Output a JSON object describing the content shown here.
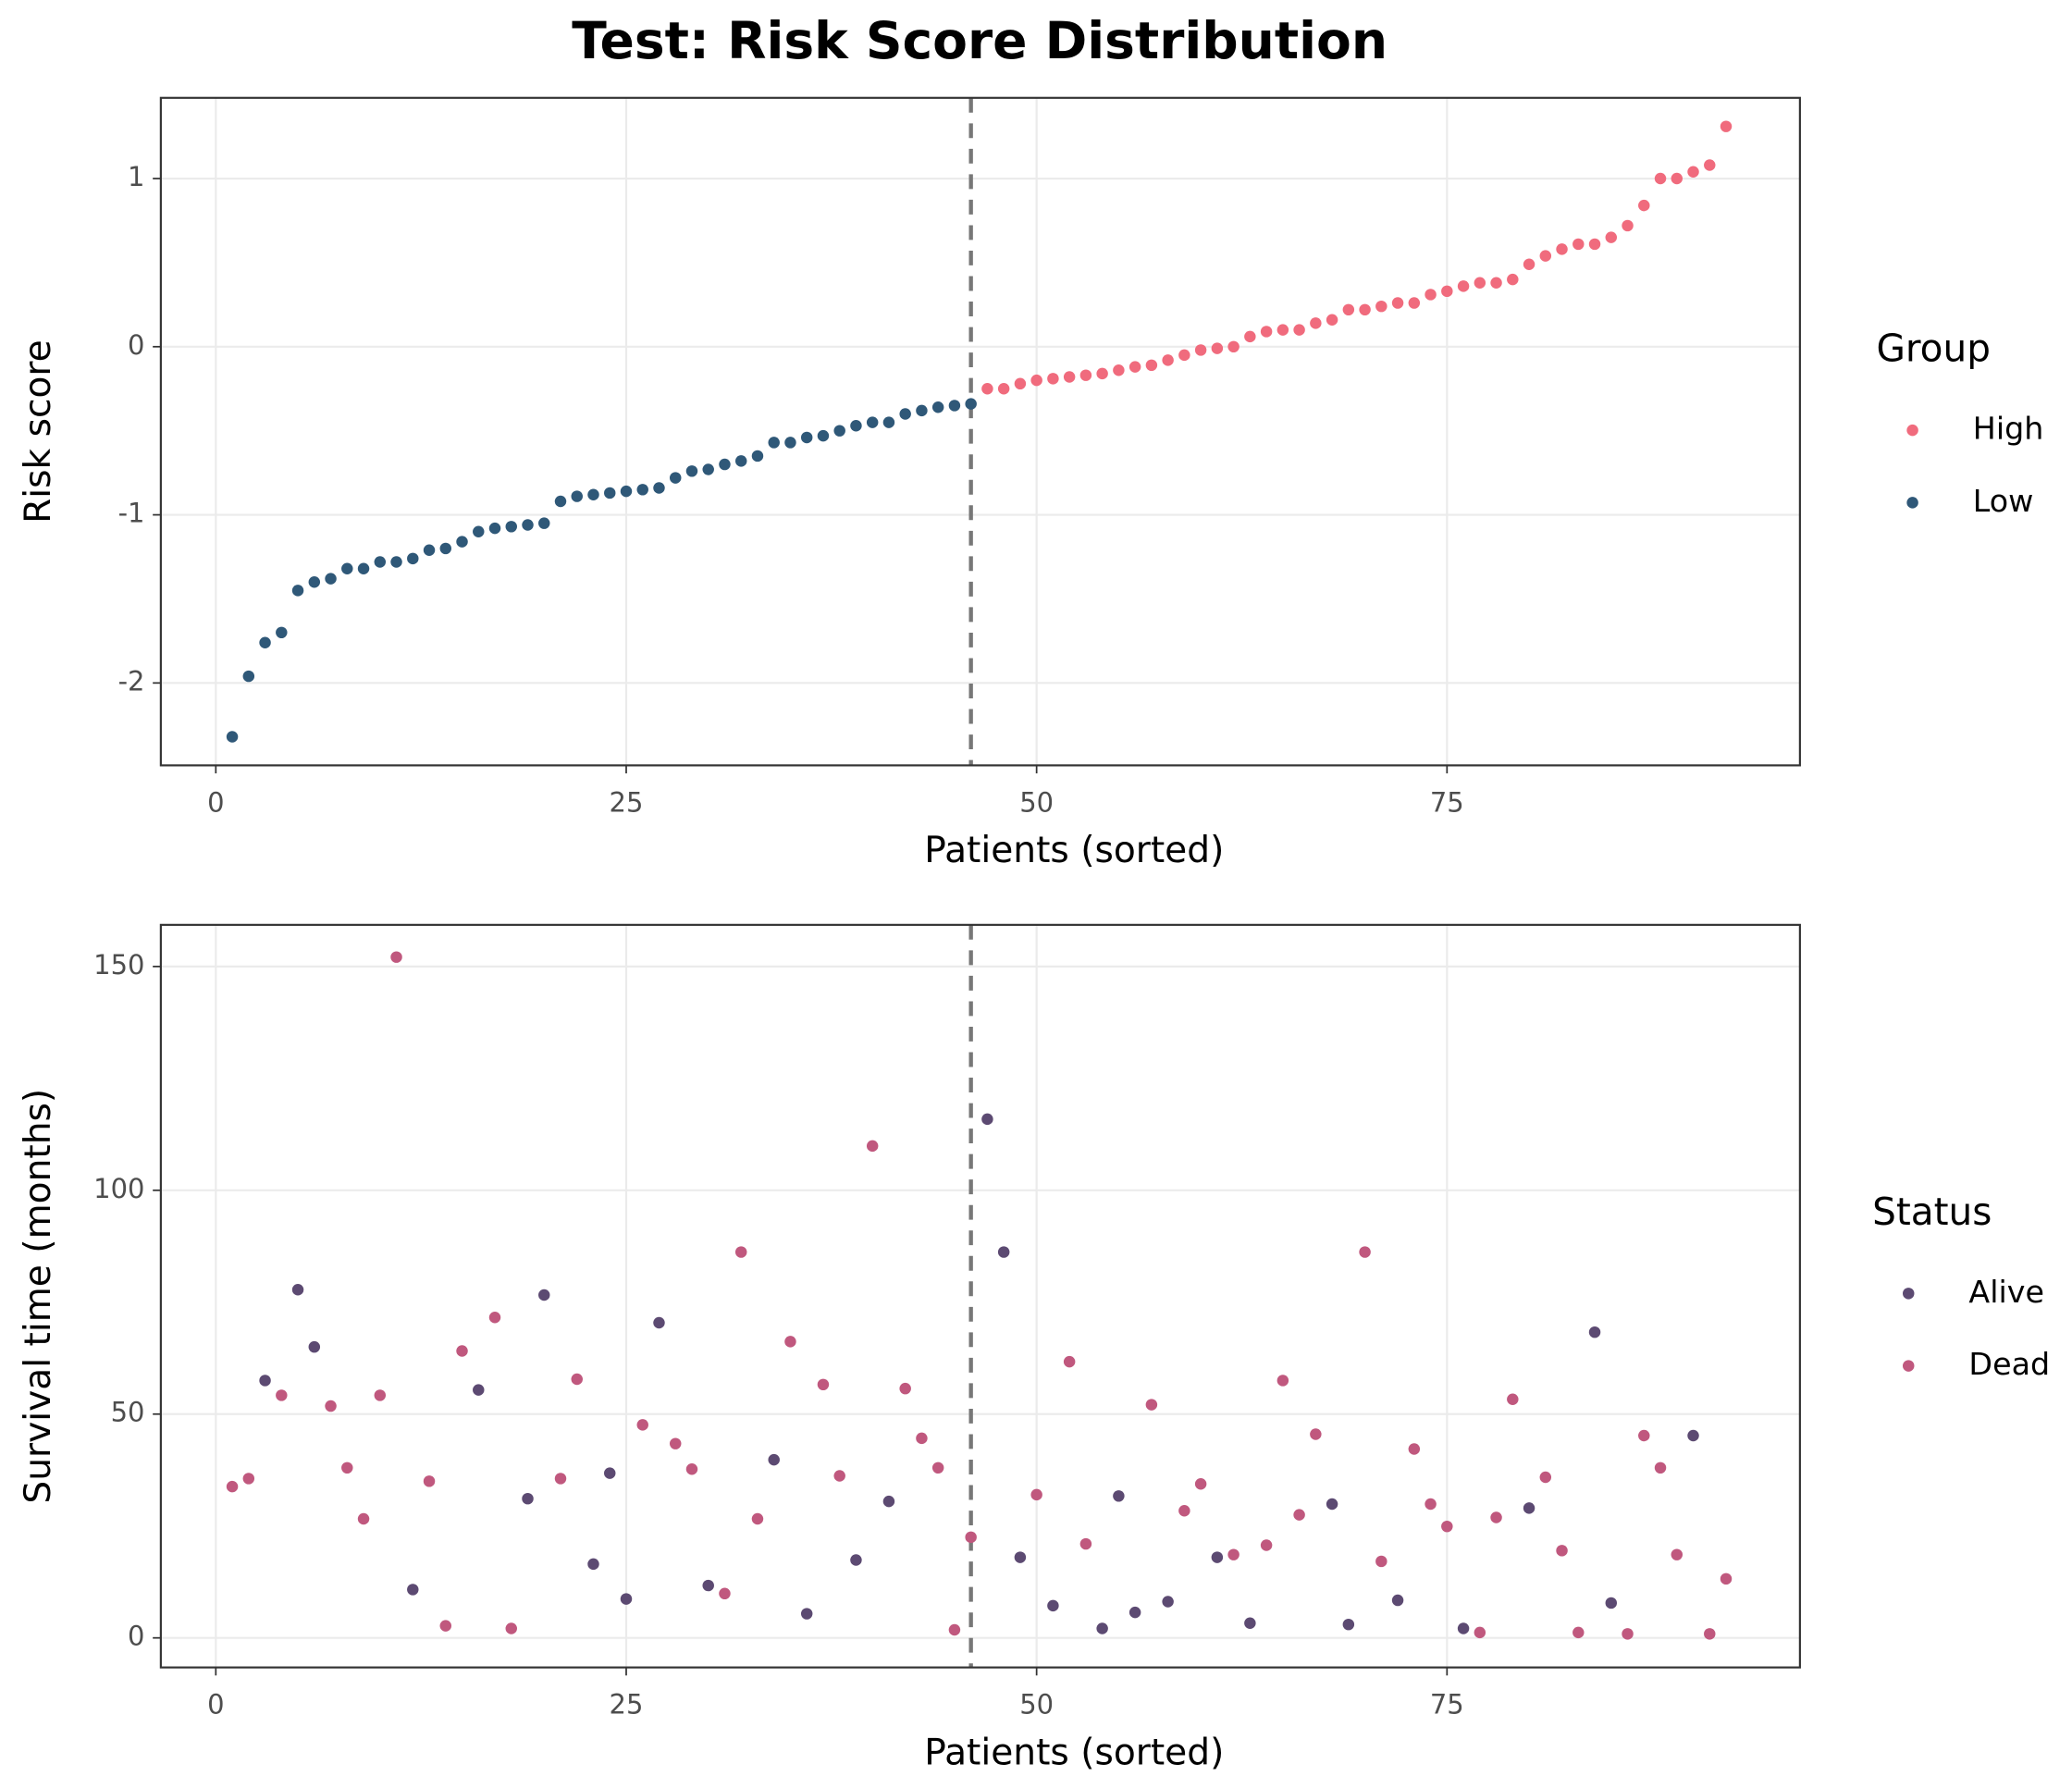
{
  "title": "Test: Risk Score Distribution",
  "chart_data": [
    {
      "type": "scatter",
      "xlabel": "Patients (sorted)",
      "ylabel": "Risk score",
      "legend_title": "Group",
      "xlim": [
        -3.35,
        96.5
      ],
      "xticks": [
        0,
        25,
        50,
        75
      ],
      "ylim": [
        -2.49,
        1.48
      ],
      "yticks": [
        -2,
        -1,
        0,
        1
      ],
      "grid": true,
      "cutoff": 46,
      "series": [
        {
          "name": "High",
          "color": "#f06b7d",
          "x": [
            47,
            48,
            49,
            50,
            51,
            52,
            53,
            54,
            55,
            56,
            57,
            58,
            59,
            60,
            61,
            62,
            63,
            64,
            65,
            66,
            67,
            68,
            69,
            70,
            71,
            72,
            73,
            74,
            75,
            76,
            77,
            78,
            79,
            80,
            81,
            82,
            83,
            84,
            85,
            86,
            87,
            88,
            89,
            90,
            91,
            92
          ],
          "values": [
            -0.25,
            -0.25,
            -0.22,
            -0.2,
            -0.19,
            -0.18,
            -0.17,
            -0.16,
            -0.14,
            -0.12,
            -0.11,
            -0.08,
            -0.05,
            -0.02,
            -0.01,
            0.0,
            0.06,
            0.09,
            0.1,
            0.1,
            0.14,
            0.16,
            0.22,
            0.22,
            0.24,
            0.26,
            0.26,
            0.31,
            0.33,
            0.36,
            0.38,
            0.38,
            0.4,
            0.49,
            0.54,
            0.58,
            0.61,
            0.61,
            0.65,
            0.72,
            0.84,
            1.0,
            1.0,
            1.04,
            1.08,
            1.31
          ]
        },
        {
          "name": "Low",
          "color": "#2f5878",
          "x": [
            1,
            2,
            3,
            4,
            5,
            6,
            7,
            8,
            9,
            10,
            11,
            12,
            13,
            14,
            15,
            16,
            17,
            18,
            19,
            20,
            21,
            22,
            23,
            24,
            25,
            26,
            27,
            28,
            29,
            30,
            31,
            32,
            33,
            34,
            35,
            36,
            37,
            38,
            39,
            40,
            41,
            42,
            43,
            44,
            45,
            46
          ],
          "values": [
            -2.32,
            -1.96,
            -1.76,
            -1.7,
            -1.45,
            -1.4,
            -1.38,
            -1.32,
            -1.32,
            -1.28,
            -1.28,
            -1.26,
            -1.21,
            -1.2,
            -1.16,
            -1.1,
            -1.08,
            -1.07,
            -1.06,
            -1.05,
            -0.92,
            -0.89,
            -0.88,
            -0.87,
            -0.86,
            -0.85,
            -0.84,
            -0.78,
            -0.74,
            -0.73,
            -0.7,
            -0.68,
            -0.65,
            -0.57,
            -0.57,
            -0.54,
            -0.53,
            -0.5,
            -0.47,
            -0.45,
            -0.45,
            -0.4,
            -0.38,
            -0.36,
            -0.35,
            -0.34
          ]
        }
      ]
    },
    {
      "type": "scatter",
      "xlabel": "Patients (sorted)",
      "ylabel": "Survival time (months)",
      "legend_title": "Status",
      "xlim": [
        -3.35,
        96.5
      ],
      "xticks": [
        0,
        25,
        50,
        75
      ],
      "ylim": [
        -6.6,
        159.3
      ],
      "yticks": [
        0,
        50,
        100,
        150
      ],
      "grid": true,
      "cutoff": 46,
      "series": [
        {
          "name": "Alive",
          "color": "#5c4a72",
          "x": [
            3,
            5,
            6,
            12,
            16,
            19,
            20,
            23,
            24,
            25,
            27,
            30,
            34,
            36,
            39,
            41,
            47,
            48,
            49,
            51,
            54,
            55,
            56,
            58,
            61,
            63,
            68,
            69,
            72,
            76,
            80,
            84,
            85,
            90
          ],
          "values": [
            57.5,
            77.8,
            65.0,
            10.8,
            55.4,
            31.1,
            76.6,
            16.5,
            36.8,
            8.7,
            70.4,
            11.7,
            39.8,
            5.4,
            17.4,
            30.5,
            115.9,
            86.2,
            18.0,
            7.2,
            2.1,
            31.7,
            5.7,
            8.1,
            18.0,
            3.3,
            29.9,
            3.0,
            8.4,
            2.1,
            29.0,
            68.3,
            7.8,
            45.2
          ]
        },
        {
          "name": "Dead",
          "color": "#c0587e",
          "x": [
            1,
            2,
            4,
            7,
            8,
            9,
            10,
            11,
            13,
            14,
            15,
            17,
            18,
            21,
            22,
            26,
            28,
            29,
            31,
            32,
            33,
            35,
            37,
            38,
            40,
            42,
            43,
            44,
            45,
            46,
            50,
            52,
            53,
            57,
            59,
            60,
            62,
            64,
            65,
            66,
            67,
            70,
            71,
            73,
            74,
            75,
            77,
            78,
            79,
            81,
            82,
            83,
            86,
            87,
            88,
            89,
            91,
            92
          ],
          "values": [
            33.8,
            35.6,
            54.2,
            51.8,
            38.0,
            26.6,
            54.2,
            152.1,
            35.0,
            2.7,
            64.1,
            71.6,
            2.1,
            35.6,
            57.8,
            47.6,
            43.4,
            37.7,
            9.9,
            86.2,
            26.6,
            66.2,
            56.6,
            36.2,
            109.9,
            55.7,
            44.6,
            38.0,
            1.8,
            22.5,
            32.0,
            61.7,
            21.0,
            52.1,
            28.4,
            34.4,
            18.6,
            20.7,
            57.5,
            27.5,
            45.5,
            86.2,
            17.1,
            42.2,
            29.9,
            24.9,
            1.2,
            26.9,
            53.3,
            35.9,
            19.5,
            1.2,
            0.9,
            45.2,
            38.0,
            18.6,
            0.9,
            13.2
          ]
        }
      ]
    }
  ]
}
